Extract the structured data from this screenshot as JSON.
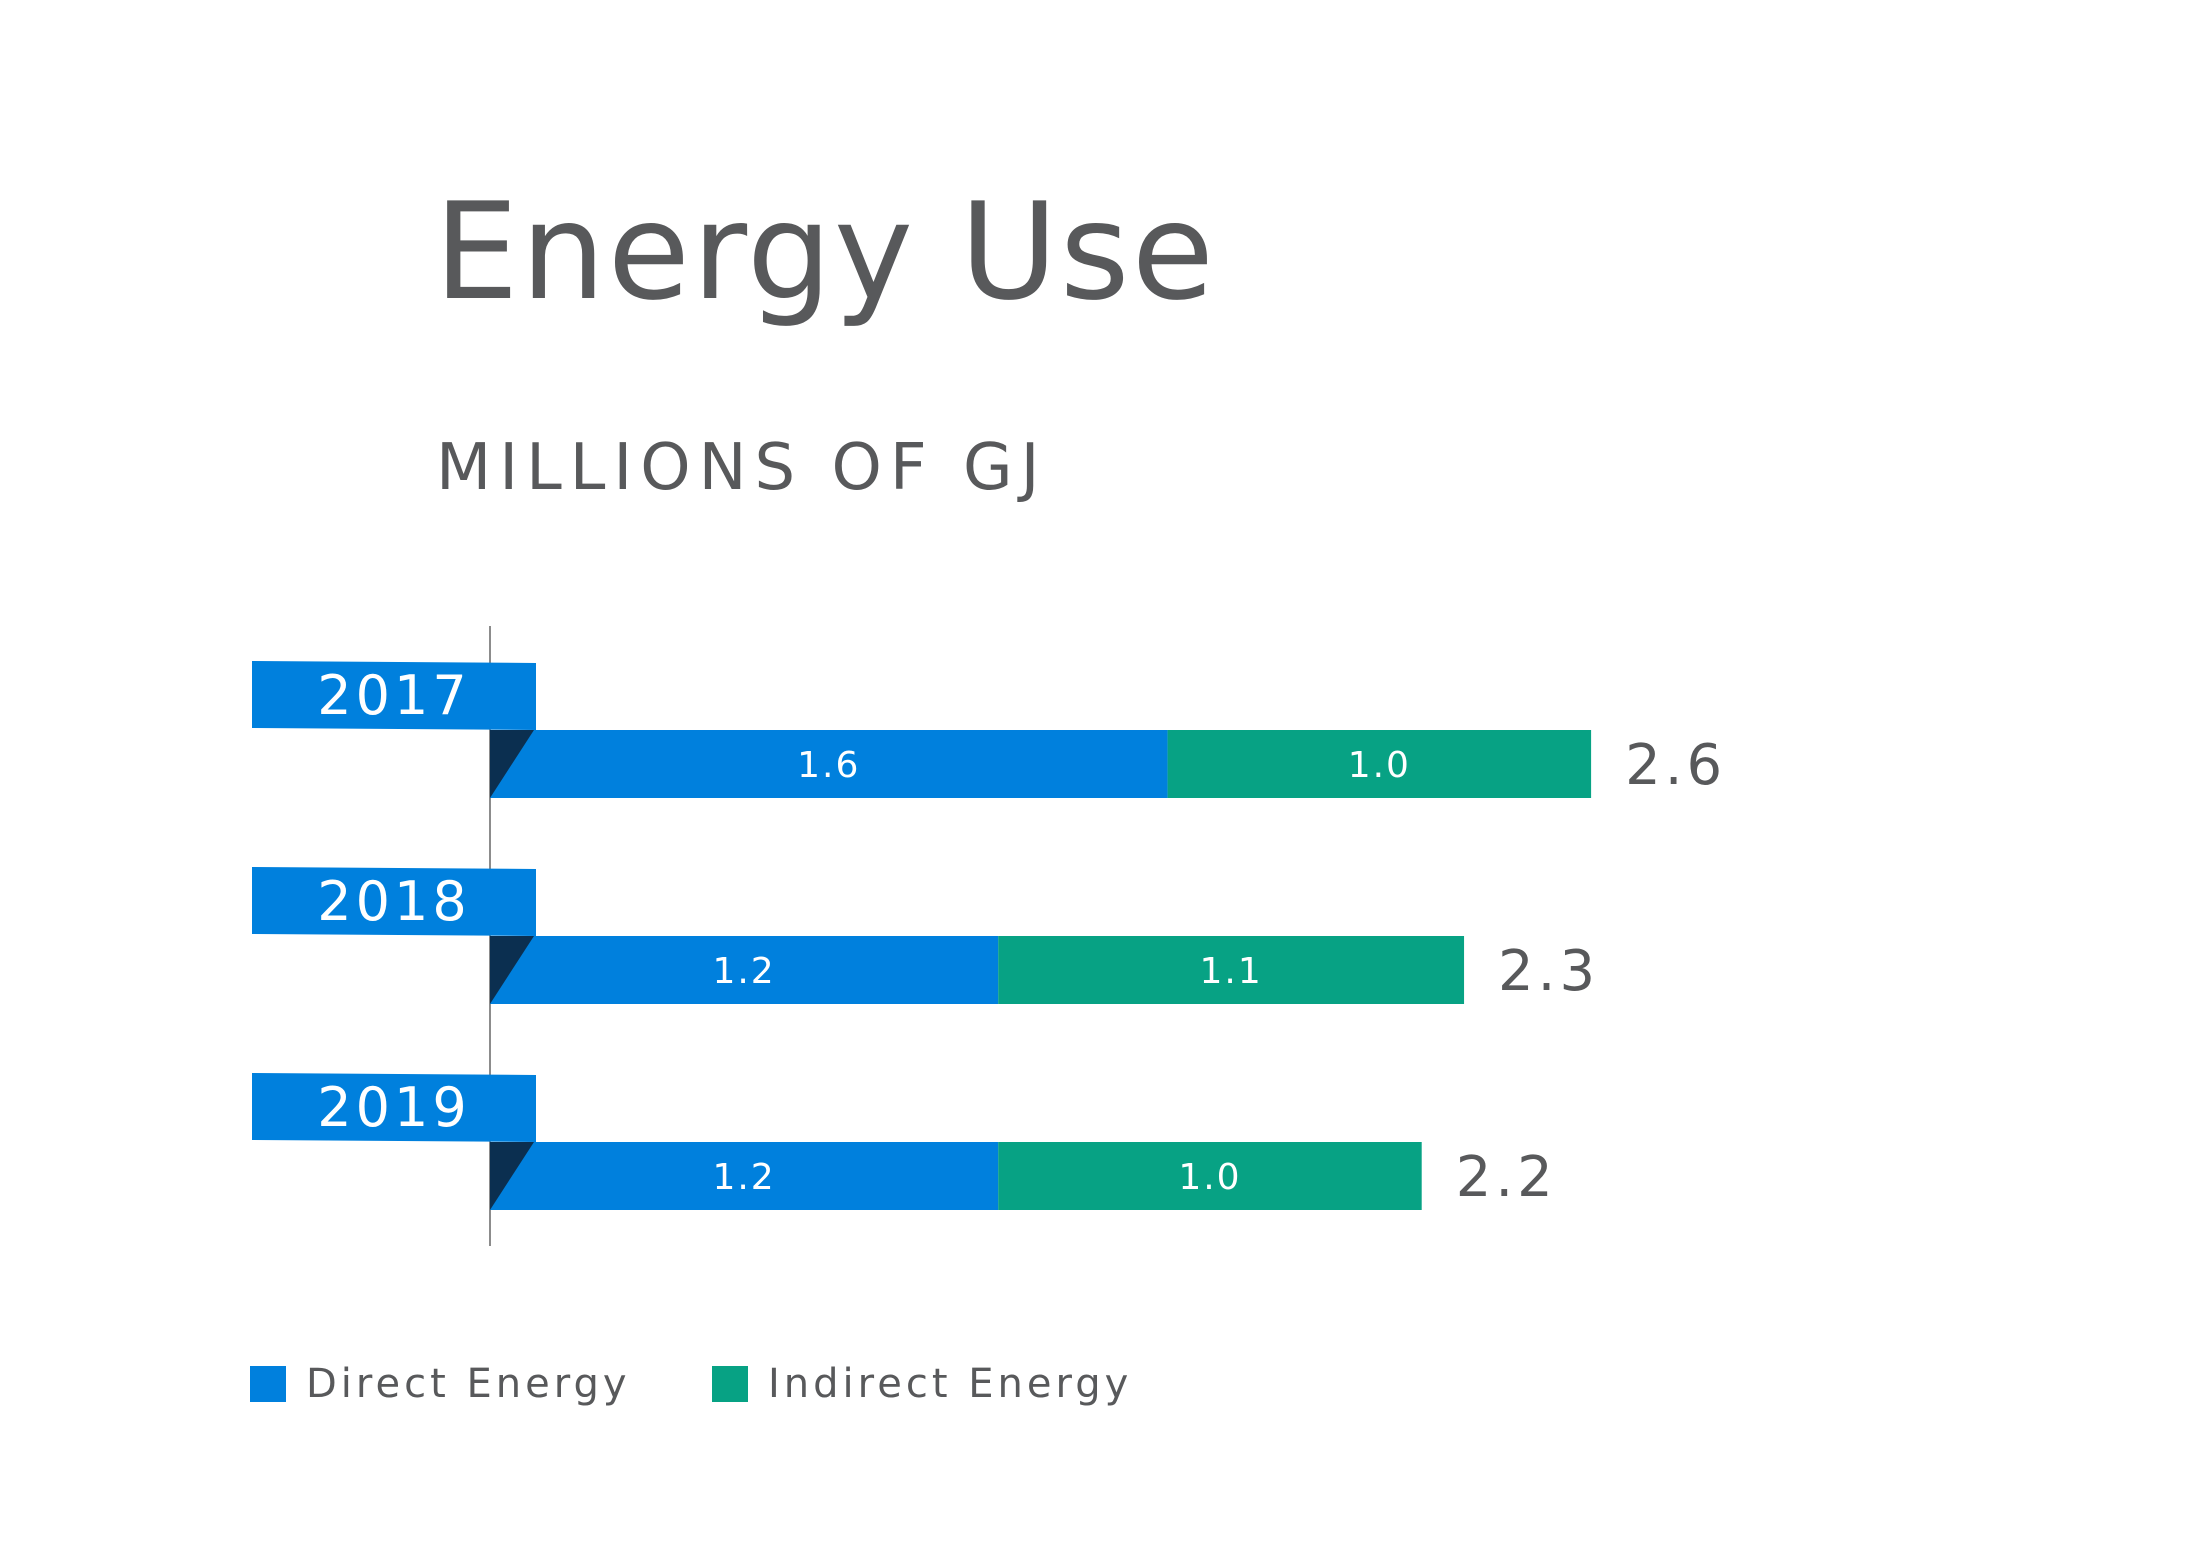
{
  "title": "Energy Use",
  "subtitle": "MILLIONS OF GJ",
  "chart_data": {
    "type": "bar",
    "orientation": "horizontal",
    "stacked": true,
    "title": "Energy Use",
    "subtitle": "MILLIONS OF GJ",
    "categories": [
      "2017",
      "2018",
      "2019"
    ],
    "series": [
      {
        "name": "Direct Energy",
        "values": [
          1.6,
          1.2,
          1.2
        ],
        "color": "#0080dd"
      },
      {
        "name": "Indirect Energy",
        "values": [
          1.0,
          1.1,
          1.0
        ],
        "color": "#07a284"
      }
    ],
    "totals": [
      "2.6",
      "2.3",
      "2.2"
    ],
    "segment_labels": [
      [
        "1.6",
        "1.2",
        "1.2"
      ],
      [
        "1.0",
        "1.1",
        "1.0"
      ]
    ],
    "legend_position": "bottom-left",
    "grid": false,
    "colors": {
      "tag": "#0080dd",
      "fold": "#0b2f50",
      "axis": "#8c8c8c",
      "text": "#58595b",
      "label": "#ffffff"
    }
  },
  "legend": [
    {
      "label": "Direct Energy",
      "color": "#0080dd"
    },
    {
      "label": "Indirect Energy",
      "color": "#07a284"
    }
  ]
}
